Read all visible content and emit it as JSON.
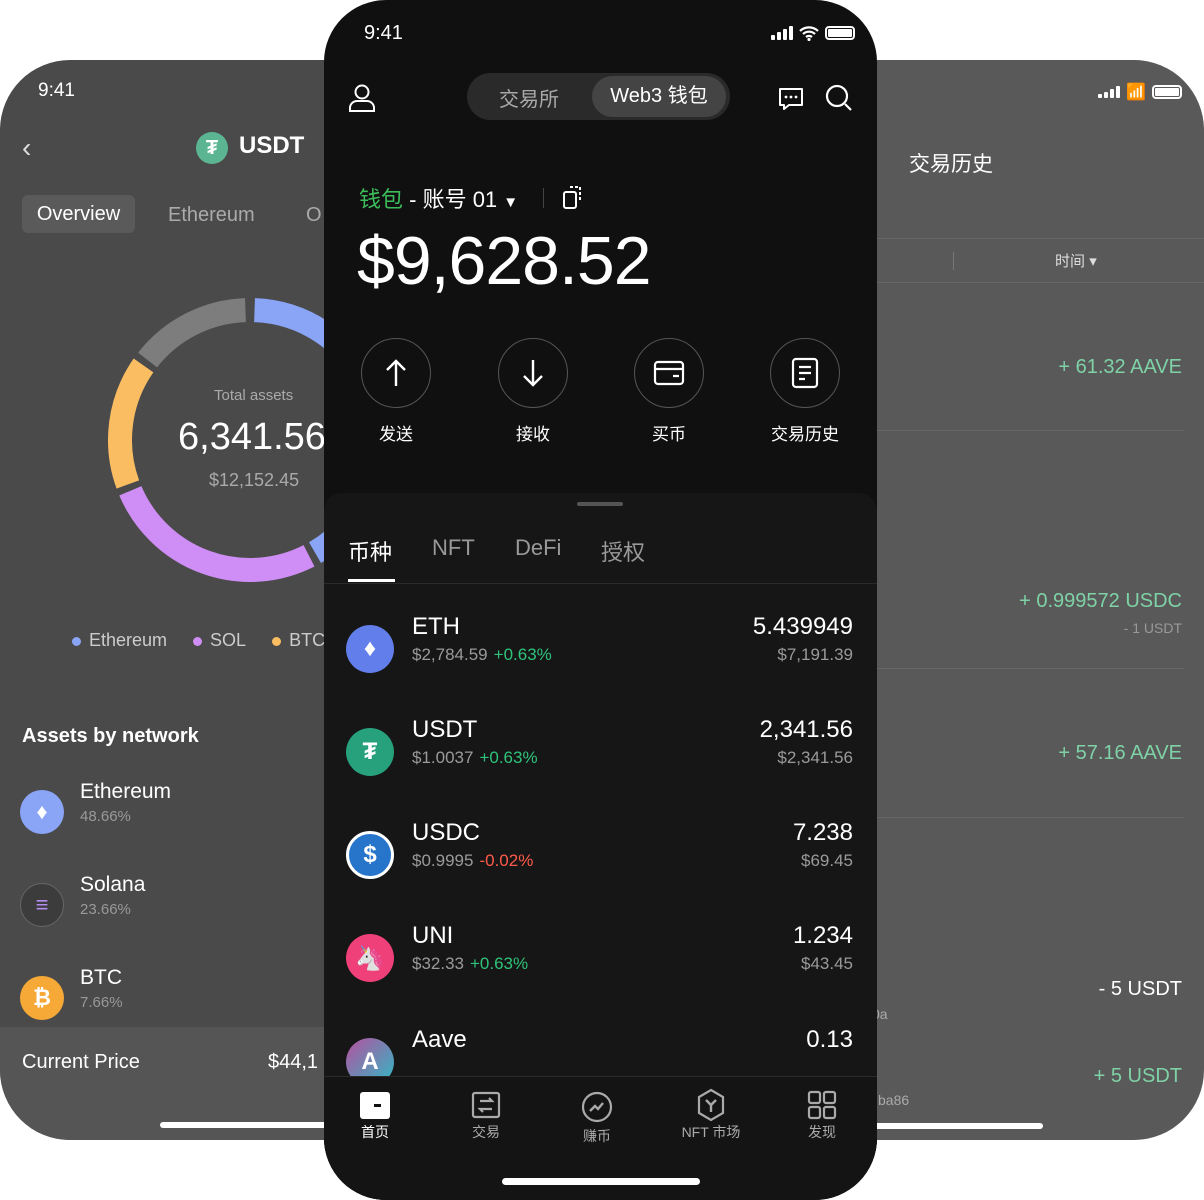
{
  "left_phone": {
    "time": "9:41",
    "title": "USDT",
    "tabs": [
      "Overview",
      "Ethereum",
      "O"
    ],
    "donut": {
      "label": "Total assets",
      "amount": "6,341.56",
      "usd": "$12,152.45"
    },
    "legend": [
      {
        "label": "Ethereum",
        "color": "#8aa4f6"
      },
      {
        "label": "SOL",
        "color": "#cf8ef5"
      },
      {
        "label": "BTC",
        "color": "#fbbd62"
      }
    ],
    "section_title": "Assets by network",
    "networks": [
      {
        "name": "Ethereum",
        "percent": "48.66%",
        "color": "#8aa4f6",
        "icon": "ethereum-icon"
      },
      {
        "name": "Solana",
        "percent": "23.66%",
        "color": "#3c3c3c",
        "icon": "solana-icon"
      },
      {
        "name": "BTC",
        "percent": "7.66%",
        "color": "#f7a938",
        "icon": "bitcoin-icon"
      }
    ],
    "current_price_label": "Current Price",
    "current_price_value": "$44,1"
  },
  "main_phone": {
    "time": "9:41",
    "segment": {
      "exchange": "交易所",
      "web3": "Web3 钱包",
      "active": "web3"
    },
    "wallet_label": "钱包",
    "account_label": "- 账号 01",
    "balance": "$9,628.52",
    "actions": [
      {
        "label": "发送",
        "icon": "arrow-up-icon"
      },
      {
        "label": "接收",
        "icon": "arrow-down-icon"
      },
      {
        "label": "买币",
        "icon": "card-icon"
      },
      {
        "label": "交易历史",
        "icon": "document-icon"
      }
    ],
    "asset_tabs": [
      "币种",
      "NFT",
      "DeFi",
      "授权"
    ],
    "active_tab": "币种",
    "tokens": [
      {
        "name": "ETH",
        "price": "$2,784.59",
        "change": "+0.63%",
        "amount": "5.439949",
        "value": "$7,191.39",
        "color": "#627eea",
        "dir": "up"
      },
      {
        "name": "USDT",
        "price": "$1.0037",
        "change": "+0.63%",
        "amount": "2,341.56",
        "value": "$2,341.56",
        "color": "#26a17b",
        "dir": "up"
      },
      {
        "name": "USDC",
        "price": "$0.9995",
        "change": "-0.02%",
        "amount": "7.238",
        "value": "$69.45",
        "color": "#2775ca",
        "dir": "down"
      },
      {
        "name": "UNI",
        "price": "$32.33",
        "change": "+0.63%",
        "amount": "1.234",
        "value": "$43.45",
        "color": "#ff007a",
        "dir": "up"
      },
      {
        "name": "Aave",
        "price": "",
        "change": "",
        "amount": "0.13",
        "value": "",
        "color": "#b6509e",
        "dir": "up"
      }
    ],
    "bottom_nav": [
      {
        "label": "首页",
        "icon": "home-icon",
        "active": true
      },
      {
        "label": "交易",
        "icon": "trade-icon",
        "active": false
      },
      {
        "label": "赚币",
        "icon": "earn-icon",
        "active": false
      },
      {
        "label": "NFT 市场",
        "icon": "nft-icon",
        "active": false
      },
      {
        "label": "发现",
        "icon": "discover-icon",
        "active": false
      }
    ]
  },
  "right_phone": {
    "title": "交易历史",
    "filter_label": "时间",
    "transactions": [
      {
        "amount": "+ 61.32 AAVE",
        "sub": ""
      },
      {
        "amount": "+ 0.999572 USDC",
        "sub": "- 1 USDT"
      },
      {
        "amount": "+ 57.16 AAVE",
        "sub": ""
      },
      {
        "amount": "- 5 USDT",
        "sub": ""
      },
      {
        "amount": "+ 5 USDT",
        "sub": ""
      }
    ],
    "partial_texts": [
      "0a",
      "ba86"
    ]
  }
}
